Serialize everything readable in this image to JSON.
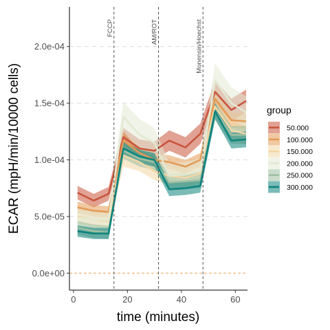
{
  "chart_data": {
    "type": "line",
    "xlabel": "time (minutes)",
    "ylabel": "ECAR (mpH/min/10000 cells)",
    "xlim": [
      -1.5,
      64.5
    ],
    "ylim": [
      -1.5e-05,
      0.000235
    ],
    "x_ticks": [
      0,
      20,
      40,
      60
    ],
    "x_tick_labels": [
      "0",
      "20",
      "40",
      "60"
    ],
    "y_ticks": [
      0,
      5e-05,
      0.0001,
      0.00015,
      0.0002
    ],
    "y_tick_labels": [
      "0.0e+00",
      "5.0e-05",
      "1.0e-04",
      "1.5e-04",
      "2.0e-04"
    ],
    "grid": "horizontal major, dashed",
    "x": [
      1.5,
      7.5,
      13,
      18.5,
      24.5,
      30,
      35.5,
      41.5,
      47,
      52.5,
      58.5,
      64
    ],
    "reference_hline": {
      "y": 0,
      "color": "#e8a35a"
    },
    "injections": [
      {
        "x": 15,
        "label": "FCCP"
      },
      {
        "x": 31.5,
        "label": "AM/ROT"
      },
      {
        "x": 48,
        "label": "Monensin/Hoechst"
      }
    ],
    "legend": {
      "title": "group",
      "position": "right"
    },
    "series": [
      {
        "name": "50.000",
        "color": "#c8553d",
        "values": [
          7.1e-05,
          6.4e-05,
          7e-05,
          0.00012,
          0.00011,
          0.000108,
          0.000117,
          0.000111,
          0.000123,
          0.00016,
          0.000144,
          0.000152
        ],
        "lower": [
          6.5e-05,
          5.8e-05,
          6.4e-05,
          0.000112,
          0.000102,
          0.0001,
          0.000108,
          0.000102,
          0.000114,
          0.00015,
          0.000134,
          0.000142
        ],
        "upper": [
          7.7e-05,
          7e-05,
          7.6e-05,
          0.000128,
          0.000118,
          0.000116,
          0.000126,
          0.00012,
          0.000132,
          0.00017,
          0.000154,
          0.000162
        ]
      },
      {
        "name": "100.000",
        "color": "#e39b56",
        "values": [
          5.8e-05,
          5.5e-05,
          5.4e-05,
          0.000117,
          0.000106,
          0.0001,
          9.8e-05,
          9.4e-05,
          0.0001,
          0.000154,
          0.000135,
          0.000134
        ],
        "lower": [
          5.3e-05,
          5e-05,
          4.9e-05,
          0.00011,
          0.0001,
          9.4e-05,
          9.2e-05,
          8.8e-05,
          9.4e-05,
          0.000146,
          0.000128,
          0.000127
        ],
        "upper": [
          6.3e-05,
          6e-05,
          5.9e-05,
          0.000124,
          0.000112,
          0.000106,
          0.000104,
          0.0001,
          0.000106,
          0.000162,
          0.000142,
          0.000141
        ]
      },
      {
        "name": "150.000",
        "color": "#f3d7a6",
        "values": [
          5e-05,
          4.7e-05,
          4.6e-05,
          0.000104,
          9.8e-05,
          9e-05,
          8.6e-05,
          8.4e-05,
          8.8e-05,
          0.000147,
          0.000126,
          0.000123
        ],
        "lower": [
          4.4e-05,
          4.1e-05,
          4e-05,
          9.4e-05,
          9e-05,
          8.2e-05,
          7.8e-05,
          7.6e-05,
          8e-05,
          0.000138,
          0.000117,
          0.000114
        ],
        "upper": [
          5.6e-05,
          5.3e-05,
          5.2e-05,
          0.000114,
          0.000106,
          9.8e-05,
          9.4e-05,
          9.2e-05,
          9.6e-05,
          0.000156,
          0.000135,
          0.000132
        ]
      },
      {
        "name": "200.000",
        "color": "#e3e9d3",
        "values": [
          4.9e-05,
          4.7e-05,
          4.7e-05,
          0.000138,
          0.000122,
          0.000115,
          8.6e-05,
          8.7e-05,
          9e-05,
          0.00017,
          0.00015,
          0.000142
        ],
        "lower": [
          4e-05,
          3.9e-05,
          3.9e-05,
          0.000125,
          0.000108,
          0.000102,
          7.5e-05,
          7.6e-05,
          7.9e-05,
          0.000155,
          0.000136,
          0.000128
        ],
        "upper": [
          5.8e-05,
          5.5e-05,
          5.5e-05,
          0.000151,
          0.000136,
          0.000128,
          9.7e-05,
          9.8e-05,
          0.000101,
          0.000185,
          0.000164,
          0.000156
        ]
      },
      {
        "name": "250.000",
        "color": "#9fbfa3",
        "values": [
          4e-05,
          3.7e-05,
          3.6e-05,
          0.000108,
          0.000101,
          9.8e-05,
          8e-05,
          8.1e-05,
          8.2e-05,
          0.000143,
          0.000122,
          0.000122
        ],
        "lower": [
          3.4e-05,
          3.1e-05,
          3e-05,
          0.000101,
          9.4e-05,
          9.1e-05,
          7.3e-05,
          7.4e-05,
          7.5e-05,
          0.000135,
          0.000114,
          0.000114
        ],
        "upper": [
          4.6e-05,
          4.3e-05,
          4.2e-05,
          0.000115,
          0.000108,
          0.000105,
          8.7e-05,
          8.8e-05,
          8.9e-05,
          0.000151,
          0.00013,
          0.00013
        ]
      },
      {
        "name": "300.000",
        "color": "#0e847d",
        "values": [
          3.7e-05,
          3.5e-05,
          3.5e-05,
          0.00011,
          0.000103,
          0.0001,
          7.4e-05,
          7.5e-05,
          7.7e-05,
          0.000143,
          0.000117,
          0.000118
        ],
        "lower": [
          3.2e-05,
          3e-05,
          3e-05,
          0.000104,
          9.7e-05,
          9.4e-05,
          6.8e-05,
          6.9e-05,
          7.1e-05,
          0.000136,
          0.00011,
          0.000111
        ],
        "upper": [
          4.2e-05,
          4e-05,
          4e-05,
          0.000116,
          0.000109,
          0.000106,
          8e-05,
          8.1e-05,
          8.3e-05,
          0.00015,
          0.000124,
          0.000125
        ]
      }
    ]
  }
}
